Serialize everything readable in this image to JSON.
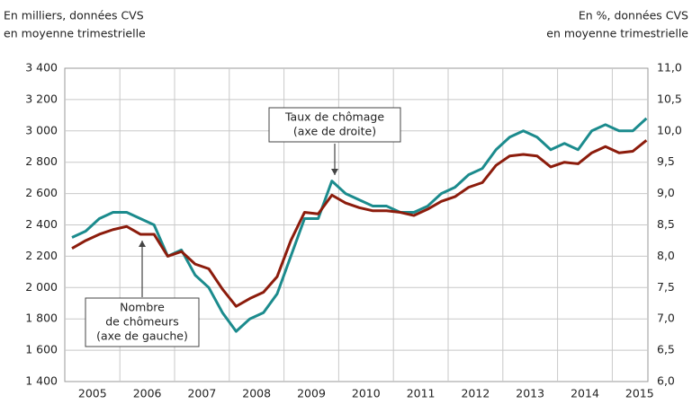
{
  "chart_data": {
    "type": "line",
    "y_title": [
      "En milliers, données CVS",
      "en moyenne trimestrielle"
    ],
    "y2_title": [
      "En %, données CVS",
      "en moyenne trimestrielle"
    ],
    "categories": [
      null,
      "2005",
      null,
      null,
      null,
      "2006",
      null,
      null,
      null,
      "2007",
      null,
      null,
      null,
      "2008",
      null,
      null,
      null,
      "2009",
      null,
      null,
      null,
      "2010",
      null,
      null,
      null,
      "2011",
      null,
      null,
      null,
      "2012",
      null,
      null,
      null,
      "2013",
      null,
      null,
      null,
      "2014",
      null,
      null,
      null,
      "2015",
      null
    ],
    "series": [
      {
        "name": "Nombre de chômeurs (axe de gauche)",
        "color": "#8c1c0c",
        "axis": "y",
        "values": [
          2250,
          2300,
          2340,
          2370,
          2390,
          2340,
          2340,
          2200,
          2230,
          2150,
          2120,
          1990,
          1880,
          1930,
          1970,
          2070,
          2300,
          2480,
          2470,
          2590,
          2540,
          2510,
          2490,
          2490,
          2480,
          2460,
          2500,
          2550,
          2580,
          2640,
          2670,
          2780,
          2840,
          2850,
          2840,
          2770,
          2800,
          2790,
          2860,
          2900,
          2860,
          2870,
          2940
        ]
      },
      {
        "name": "Taux de chômage (axe de droite)",
        "color": "#1b8b8d",
        "axis": "y2",
        "values": [
          8.3,
          8.4,
          8.6,
          8.7,
          8.7,
          8.6,
          8.5,
          8.0,
          8.1,
          7.7,
          7.5,
          7.1,
          6.8,
          7.0,
          7.1,
          7.4,
          8.0,
          8.6,
          8.6,
          9.2,
          9.0,
          8.9,
          8.8,
          8.8,
          8.7,
          8.7,
          8.8,
          9.0,
          9.1,
          9.3,
          9.4,
          9.7,
          9.9,
          10.0,
          9.9,
          9.7,
          9.8,
          9.7,
          10.0,
          10.1,
          10.0,
          10.0,
          10.2
        ]
      }
    ],
    "annotations": [
      {
        "lines": [
          "Taux de chômage",
          "(axe de droite)"
        ]
      },
      {
        "lines": [
          "Nombre",
          "de chômeurs",
          "(axe de gauche)"
        ]
      }
    ],
    "ylim": [
      1400,
      3400
    ],
    "yticks": [
      {
        "value": 1400,
        "label": "1 400"
      },
      {
        "value": 1600,
        "label": "1 600"
      },
      {
        "value": 1800,
        "label": "1 800"
      },
      {
        "value": 2000,
        "label": "2 000"
      },
      {
        "value": 2200,
        "label": "2 200"
      },
      {
        "value": 2400,
        "label": "2 400"
      },
      {
        "value": 2600,
        "label": "2 600"
      },
      {
        "value": 2800,
        "label": "2 800"
      },
      {
        "value": 3000,
        "label": "3 000"
      },
      {
        "value": 3200,
        "label": "3 200"
      },
      {
        "value": 3400,
        "label": "3 400"
      }
    ],
    "y2lim": [
      6,
      11
    ],
    "y2ticks": [
      {
        "value": 6,
        "label": "6,0"
      },
      {
        "value": 6.5,
        "label": "6,5"
      },
      {
        "value": 7,
        "label": "7,0"
      },
      {
        "value": 7.5,
        "label": "7,5"
      },
      {
        "value": 8,
        "label": "8,0"
      },
      {
        "value": 8.5,
        "label": "8,5"
      },
      {
        "value": 9,
        "label": "9,0"
      },
      {
        "value": 9.5,
        "label": "9,5"
      },
      {
        "value": 10,
        "label": "10,0"
      },
      {
        "value": 10.5,
        "label": "10,5"
      },
      {
        "value": 11,
        "label": "11,0"
      }
    ],
    "grid": true
  }
}
